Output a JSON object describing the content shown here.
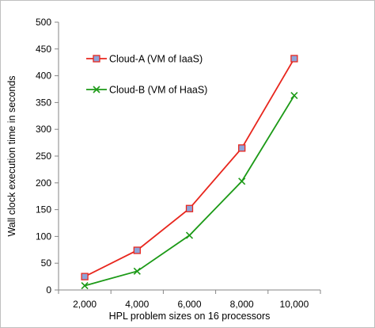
{
  "chart_data": {
    "type": "line",
    "x": [
      2000,
      4000,
      6000,
      8000,
      10000
    ],
    "x_tick_labels": [
      "2,000",
      "4,000",
      "6,000",
      "8,000",
      "10,000"
    ],
    "xlabel": "HPL problem sizes on 16 processors",
    "ylabel": "Wall clock execution time in seconds",
    "ylim": [
      0,
      500
    ],
    "y_ticks": [
      0,
      50,
      100,
      150,
      200,
      250,
      300,
      350,
      400,
      450,
      500
    ],
    "grid": false,
    "legend_position": "upper-left",
    "series": [
      {
        "name": "Cloud-A (VM of IaaS)",
        "values": [
          25,
          74,
          152,
          265,
          432
        ],
        "color": "#e8261d",
        "marker": "square",
        "marker_fill": "#8ea4d9"
      },
      {
        "name": "Cloud-B (VM of HaaS)",
        "values": [
          8,
          35,
          102,
          203,
          363
        ],
        "color": "#1c9a17",
        "marker": "x",
        "marker_fill": "#1c9a17"
      }
    ]
  }
}
